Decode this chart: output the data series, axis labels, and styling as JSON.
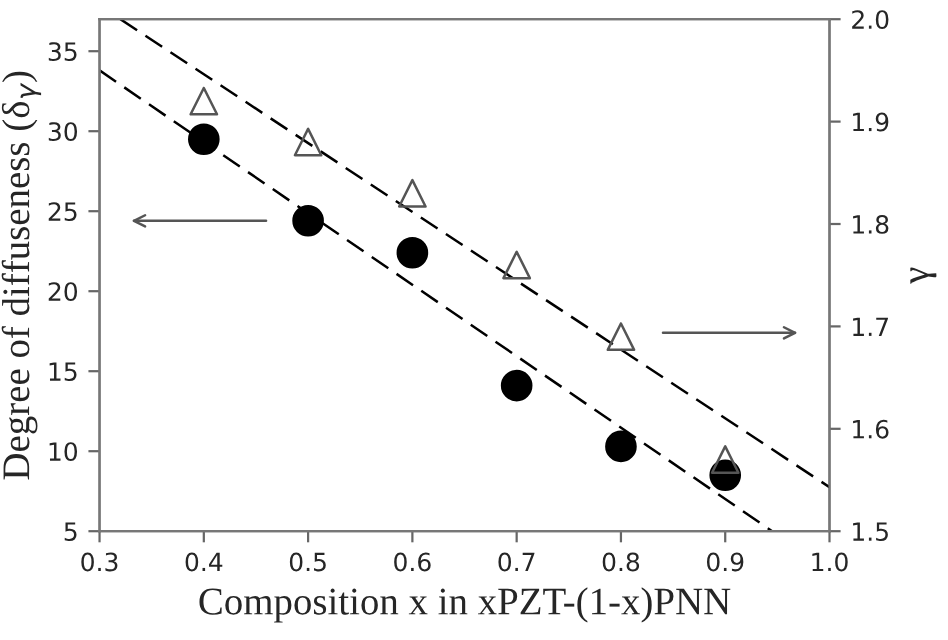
{
  "chart_data": {
    "type": "scatter",
    "xlabel": "Composition x in xPZT-(1-x)PNN",
    "ylabel": "Degree of diffuseness (δ$_{γ}$)",
    "y2label": "γ",
    "x": [
      0.4,
      0.5,
      0.6,
      0.7,
      0.8,
      0.9
    ],
    "series": [
      {
        "color": "#000000",
        "marker": "circle",
        "values": [
          29.5,
          24.4,
          22.4,
          14.1,
          10.3,
          8.5
        ]
      },
      {
        "color": "#555555",
        "marker": "triangle",
        "axis": "y2",
        "values": [
          1.92,
          1.88,
          1.83,
          1.76,
          1.69,
          1.57
        ]
      },
      {
        "type": "line",
        "color": "#000000",
        "marker": "none",
        "line_style": "dashed",
        "x": [
          0.3,
          0.945
        ],
        "values": [
          33.8,
          5
        ]
      },
      {
        "type": "line",
        "color": "#000000",
        "marker": "none",
        "line_style": "dashed",
        "axis": "y2",
        "x": [
          0.32,
          1.0
        ],
        "values": [
          2.0,
          1.543
        ]
      }
    ],
    "xlim": [
      0.3,
      1.0
    ],
    "xticks": [
      0.3,
      0.4,
      0.5,
      0.6,
      0.7,
      0.8,
      0.9,
      {
        "value": 1.0,
        "label": "1.0"
      }
    ],
    "ylim": [
      5,
      37
    ],
    "yticks": [
      5,
      10,
      15,
      20,
      25,
      30,
      35
    ],
    "y2lim": [
      1.5,
      2.0
    ],
    "y2ticks": [
      1.5,
      1.6,
      1.7,
      1.8,
      1.9,
      {
        "value": 2.0,
        "label": "2.0"
      }
    ],
    "grid": false,
    "legend": false
  }
}
